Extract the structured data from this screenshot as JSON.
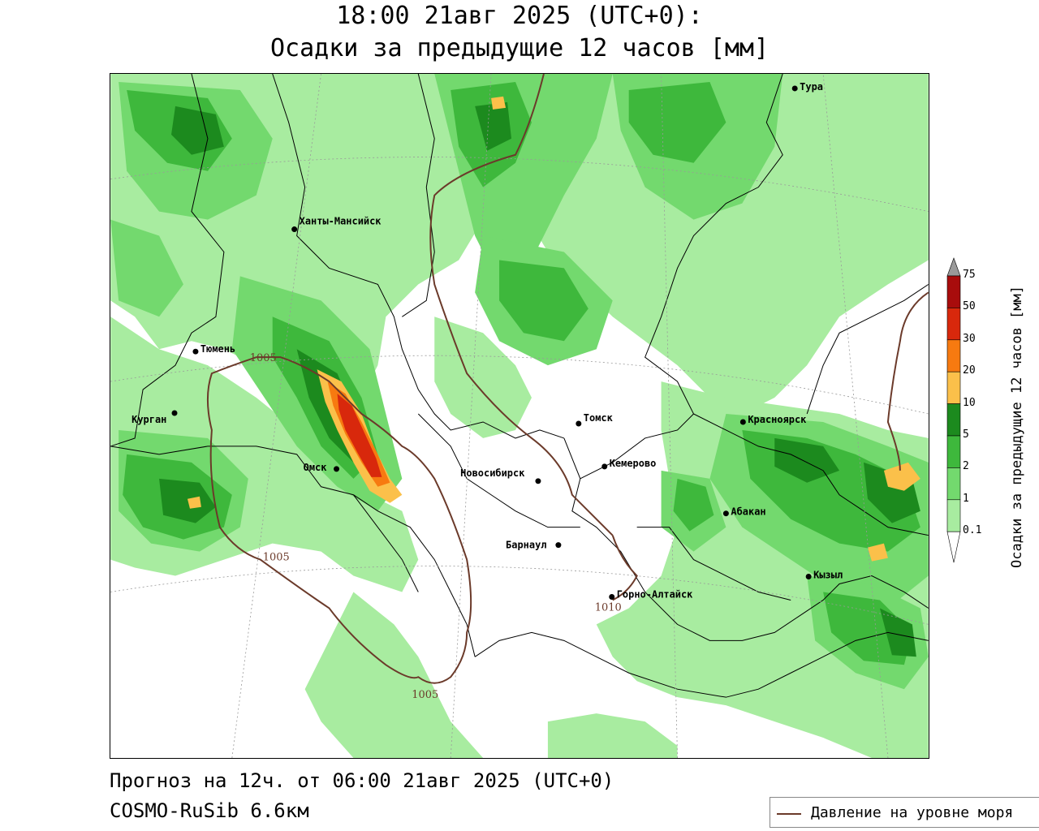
{
  "header": {
    "title_line1": "18:00 21авг 2025 (UTC+0):",
    "title_line2": "Осадки за предыдущие 12 часов [мм]"
  },
  "footer": {
    "forecast": "Прогноз на 12ч. от 06:00 21авг 2025 (UTC+0)",
    "model": "COSMO-RuSib 6.6км"
  },
  "legend": {
    "pressure_label": "Давление на уровне моря",
    "line_color": "#6b3a2a"
  },
  "colorbar": {
    "title": "Осадки за предыдущие 12 часов [мм]",
    "levels": [
      "0.1",
      "1",
      "2",
      "5",
      "10",
      "20",
      "30",
      "50",
      "75"
    ],
    "colors": [
      "#ffffff",
      "#a8eca0",
      "#73d96e",
      "#3eb83c",
      "#1c8a1e",
      "#fbc04a",
      "#f77a10",
      "#d8280c",
      "#a80c0c",
      "#9a9a9a"
    ]
  },
  "cities": [
    {
      "name": "Тура"
    },
    {
      "name": "Ханты-Мансийск"
    },
    {
      "name": "Тюмень"
    },
    {
      "name": "Курган"
    },
    {
      "name": "Омск"
    },
    {
      "name": "Томск"
    },
    {
      "name": "Красноярск"
    },
    {
      "name": "Кемерово"
    },
    {
      "name": "Новосибирск"
    },
    {
      "name": "Абакан"
    },
    {
      "name": "Барнаул"
    },
    {
      "name": "Кызыл"
    },
    {
      "name": "Горно-Алтайск"
    }
  ],
  "isobars": [
    {
      "label": "1005"
    },
    {
      "label": "1005"
    },
    {
      "label": "1005"
    },
    {
      "label": "1010"
    }
  ]
}
